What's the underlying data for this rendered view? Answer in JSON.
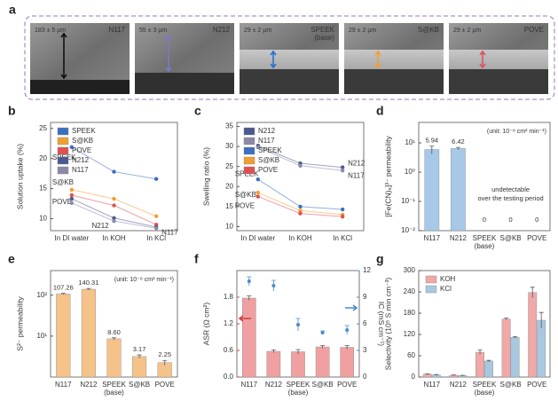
{
  "panel_a": {
    "label": "a",
    "images": [
      {
        "name": "N117",
        "thickness": "183 ± 5 µm",
        "color": "#e8e8e8"
      },
      {
        "name": "N212",
        "thickness": "55 ± 3 µm",
        "color": "#7a7ac8"
      },
      {
        "name": "SPEEK",
        "note": "(base)",
        "thickness": "29 ± 2 µm",
        "color": "#2a70d0"
      },
      {
        "name": "S@KB",
        "thickness": "29 ± 2 µm",
        "color": "#f0a030"
      },
      {
        "name": "POVE",
        "thickness": "29 ± 2 µm",
        "color": "#e05060"
      }
    ]
  },
  "chart_data": [
    {
      "label": "b",
      "type": "line",
      "y_label": "Solution uptake (%)",
      "categories": [
        "In DI water",
        "In KOH",
        "In KCl"
      ],
      "ylim": [
        8,
        26
      ],
      "yticks": [
        10,
        15,
        20,
        25
      ],
      "series": [
        {
          "name": "SPEEK",
          "color": "#3a6fc2",
          "values": [
            21.9,
            17.8,
            16.6
          ]
        },
        {
          "name": "S@KB",
          "color": "#f0a030",
          "values": [
            14.8,
            13.3,
            10.4
          ]
        },
        {
          "name": "POVE",
          "color": "#e05050",
          "values": [
            13.9,
            12.2,
            9.0
          ]
        },
        {
          "name": "N212",
          "color": "#4a5a90",
          "values": [
            13.3,
            10.1,
            8.6
          ]
        },
        {
          "name": "N117",
          "color": "#8a8aa8",
          "values": [
            12.6,
            9.6,
            8.4
          ]
        }
      ]
    },
    {
      "label": "c",
      "type": "line",
      "y_label": "Swelling ratio (%)",
      "categories": [
        "In DI water",
        "In KOH",
        "In KCl"
      ],
      "ylim": [
        9,
        36
      ],
      "yticks": [
        10,
        15,
        20,
        25,
        30,
        35
      ],
      "series": [
        {
          "name": "N212",
          "color": "#4a5a90",
          "values": [
            30.2,
            25.8,
            24.8
          ]
        },
        {
          "name": "N117",
          "color": "#8a8aa8",
          "values": [
            29.8,
            25.2,
            24.0
          ]
        },
        {
          "name": "SPEEK",
          "color": "#3a6fc2",
          "values": [
            21.8,
            15.0,
            14.3
          ]
        },
        {
          "name": "S@KB",
          "color": "#f0a030",
          "values": [
            18.5,
            14.0,
            13.0
          ]
        },
        {
          "name": "POVE",
          "color": "#e05050",
          "values": [
            17.5,
            13.3,
            12.5
          ]
        }
      ]
    },
    {
      "label": "d",
      "type": "bar",
      "y_label": "[Fe(CN)₆]³⁻ permeability",
      "log_scale": true,
      "categories": [
        "N117",
        "N212",
        "SPEEK",
        "S@KB",
        "POVE"
      ],
      "category_sublabels": [
        null,
        null,
        "(base)",
        null,
        null
      ],
      "values": [
        5.94,
        6.42,
        0,
        0,
        0
      ],
      "errors": [
        1.8,
        0.6,
        null,
        null,
        null
      ],
      "color": "#a8c8e8",
      "ylim": [
        0.01,
        50
      ],
      "yticks": [
        {
          "value": 0.01,
          "label": "10⁻²"
        },
        {
          "value": 0.1,
          "label": "10⁻¹"
        },
        {
          "value": 1,
          "label": "10⁰"
        },
        {
          "value": 10,
          "label": "10¹"
        }
      ],
      "unit_note": "(unit: 10⁻⁸ cm² min⁻¹)",
      "annotation": [
        "undetectable",
        "over the testing period"
      ]
    },
    {
      "label": "e",
      "type": "bar",
      "y_label": "S²⁻ permeability",
      "log_scale": true,
      "categories": [
        "N117",
        "N212",
        "SPEEK",
        "S@KB",
        "POVE"
      ],
      "category_sublabels": [
        null,
        null,
        "(base)",
        null,
        null
      ],
      "values": [
        107.26,
        140.31,
        8.6,
        3.17,
        2.25
      ],
      "value_labels": [
        "107.26",
        "140.31",
        "8.60",
        "3.17",
        "2.25"
      ],
      "errors": [
        4,
        6,
        0.5,
        0.3,
        0.3
      ],
      "color": "#f5c28a",
      "ylim": [
        1,
        400
      ],
      "yticks": [
        {
          "value": 10,
          "label": "10¹"
        },
        {
          "value": 100,
          "label": "10²"
        }
      ],
      "unit_note": "(unit: 10⁻⁸ cm² min⁻¹)"
    },
    {
      "label": "f",
      "type": "bar",
      "y_label": "ASR (Ω cm²)",
      "y2_label": "IC (mS cm⁻¹)",
      "categories": [
        "N117",
        "N212",
        "SPEEK",
        "S@KB",
        "POVE"
      ],
      "category_sublabels": [
        null,
        null,
        "(base)",
        null,
        null
      ],
      "ylim": [
        0,
        2.4
      ],
      "yticks": [
        {
          "value": 0,
          "label": "0.0"
        },
        0.6,
        1.2,
        1.8
      ],
      "y2lim": [
        0,
        12
      ],
      "y2ticks": [
        0,
        3,
        6,
        9,
        12
      ],
      "series": [
        {
          "color": "#f0a0a0",
          "values": [
            1.78,
            0.58,
            0.57,
            0.68,
            0.67
          ],
          "errors": [
            0.05,
            0.03,
            0.05,
            0.03,
            0.04
          ]
        },
        {
          "color": "#4a8ac8",
          "axis": "y2",
          "marker": "point",
          "values": [
            10.8,
            10.3,
            5.9,
            5.0,
            5.3
          ],
          "errors": [
            0.5,
            0.6,
            0.7,
            0.2,
            0.5
          ]
        }
      ]
    },
    {
      "label": "g",
      "type": "bar",
      "y_label": "Selectivity (10⁵ S min cm⁻³)",
      "categories": [
        "N117",
        "N212",
        "SPEEK",
        "S@KB",
        "POVE"
      ],
      "category_sublabels": [
        null,
        null,
        "(base)",
        null,
        null
      ],
      "ylim": [
        0,
        300
      ],
      "yticks": [
        0,
        60,
        120,
        180,
        240,
        300
      ],
      "series": [
        {
          "name": "KOH",
          "color": "#f0a8a8",
          "values": [
            8,
            5,
            70,
            163,
            238
          ],
          "errors": [
            1,
            1,
            6,
            3,
            15
          ]
        },
        {
          "name": "KCl",
          "color": "#a8c8e0",
          "values": [
            6,
            4,
            45,
            112,
            160
          ],
          "errors": [
            1,
            1,
            2,
            2,
            22
          ]
        }
      ]
    }
  ]
}
